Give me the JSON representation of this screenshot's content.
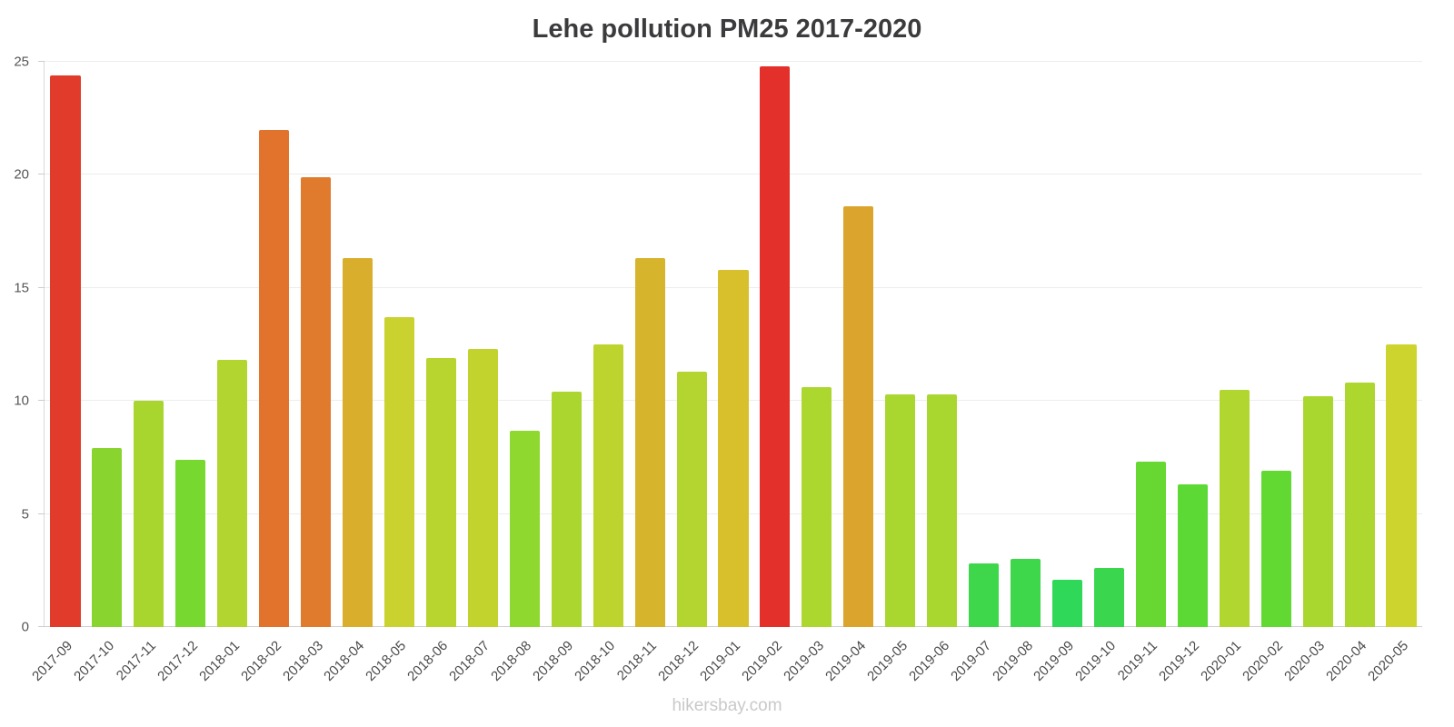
{
  "footer": {
    "text": "hikersbay.com"
  },
  "chart_data": {
    "type": "bar",
    "title": "Lehe pollution PM25 2017-2020",
    "xlabel": "",
    "ylabel": "",
    "ylim": [
      0,
      25
    ],
    "yticks": [
      0,
      5,
      10,
      15,
      20,
      25
    ],
    "grid": true,
    "legend": "none",
    "categories": [
      "2017-09",
      "2017-10",
      "2017-11",
      "2017-12",
      "2018-01",
      "2018-02",
      "2018-03",
      "2018-04",
      "2018-05",
      "2018-06",
      "2018-07",
      "2018-08",
      "2018-09",
      "2018-10",
      "2018-11",
      "2018-12",
      "2019-01",
      "2019-02",
      "2019-03",
      "2019-04",
      "2019-05",
      "2019-06",
      "2019-07",
      "2019-08",
      "2019-09",
      "2019-10",
      "2019-11",
      "2019-12",
      "2020-01",
      "2020-02",
      "2020-03",
      "2020-04",
      "2020-05"
    ],
    "values": [
      24.4,
      7.9,
      10.0,
      7.4,
      11.8,
      22.0,
      19.9,
      16.3,
      13.7,
      11.9,
      12.3,
      8.7,
      10.4,
      12.5,
      16.3,
      11.3,
      15.8,
      24.8,
      10.6,
      18.6,
      10.3,
      10.3,
      2.8,
      3.0,
      2.1,
      2.6,
      7.3,
      6.3,
      10.5,
      6.9,
      10.2,
      10.8,
      12.5
    ],
    "bar_colors": [
      "#e13c2b",
      "#8ad42f",
      "#a8d62f",
      "#77d82f",
      "#b2d52f",
      "#e2732c",
      "#e07b2e",
      "#d8ae2c",
      "#c9d22e",
      "#b8d42f",
      "#c2d32e",
      "#8fd82f",
      "#aad62f",
      "#bed42e",
      "#d6b42c",
      "#b4d52f",
      "#d7c02c",
      "#e3302a",
      "#abd72f",
      "#dba42c",
      "#a9d72f",
      "#a9d72f",
      "#3ed64a",
      "#3ed64a",
      "#2fd858",
      "#3ad64e",
      "#67d831",
      "#5cd934",
      "#b1d62f",
      "#62d932",
      "#a9d72f",
      "#add62f",
      "#cdd42e"
    ],
    "axis_line_color": "#d9d9d9",
    "gridline_color": "#ededed",
    "text_color": "#4a4a4a"
  }
}
